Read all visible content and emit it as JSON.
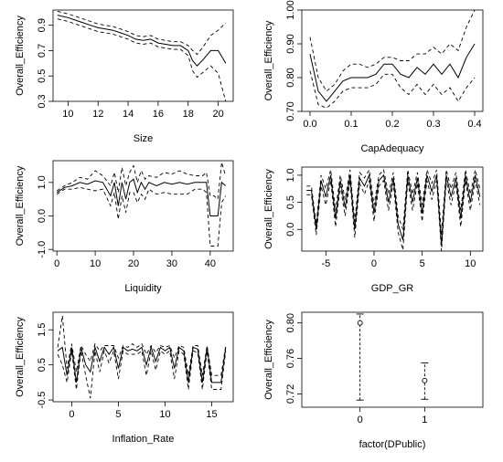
{
  "chart_data": [
    {
      "type": "line",
      "xlabel": "Size",
      "ylabel": "Overall_Efficiency",
      "xlim": [
        9,
        21
      ],
      "ylim": [
        0.3,
        1.02
      ],
      "xticks": [
        10,
        12,
        14,
        16,
        18,
        20
      ],
      "yticks": [
        0.3,
        0.5,
        0.7,
        0.9
      ],
      "x": [
        9.3,
        10,
        10.5,
        11,
        11.5,
        12,
        12.5,
        13,
        13.5,
        14,
        14.5,
        15,
        15.5,
        16,
        16.5,
        17,
        17.5,
        18,
        18.3,
        18.6,
        19,
        19.5,
        20,
        20.5
      ],
      "series": [
        {
          "style": "solid",
          "values": [
            0.98,
            0.96,
            0.94,
            0.92,
            0.9,
            0.88,
            0.87,
            0.86,
            0.84,
            0.82,
            0.79,
            0.78,
            0.79,
            0.76,
            0.75,
            0.74,
            0.74,
            0.7,
            0.62,
            0.58,
            0.63,
            0.7,
            0.7,
            0.6
          ]
        },
        {
          "style": "dashed",
          "values": [
            1.01,
            0.99,
            0.97,
            0.95,
            0.93,
            0.91,
            0.9,
            0.89,
            0.87,
            0.85,
            0.82,
            0.81,
            0.82,
            0.79,
            0.78,
            0.77,
            0.77,
            0.74,
            0.7,
            0.67,
            0.73,
            0.82,
            0.86,
            0.92
          ]
        },
        {
          "style": "dashed",
          "values": [
            0.95,
            0.93,
            0.91,
            0.89,
            0.87,
            0.85,
            0.84,
            0.83,
            0.81,
            0.79,
            0.76,
            0.75,
            0.76,
            0.73,
            0.72,
            0.71,
            0.71,
            0.66,
            0.54,
            0.49,
            0.53,
            0.58,
            0.52,
            0.3
          ]
        }
      ]
    },
    {
      "type": "line",
      "xlabel": "CapAdequacy",
      "ylabel": "Overall_Efficiency",
      "xlim": [
        -0.02,
        0.42
      ],
      "ylim": [
        0.7,
        1.0
      ],
      "xticks": [
        0.0,
        0.1,
        0.2,
        0.3,
        0.4
      ],
      "xtick_labels": [
        "0.0",
        "0.1",
        "0.2",
        "0.3",
        "0.4"
      ],
      "yticks": [
        0.7,
        0.8,
        0.9,
        1.0
      ],
      "ytick_labels": [
        "0.70",
        "0.80",
        "0.90",
        "1.00"
      ],
      "x": [
        0.0,
        0.02,
        0.04,
        0.06,
        0.08,
        0.1,
        0.12,
        0.14,
        0.16,
        0.18,
        0.2,
        0.22,
        0.24,
        0.26,
        0.28,
        0.3,
        0.32,
        0.34,
        0.36,
        0.38,
        0.4
      ],
      "series": [
        {
          "style": "solid",
          "values": [
            0.87,
            0.76,
            0.73,
            0.76,
            0.79,
            0.8,
            0.8,
            0.8,
            0.81,
            0.84,
            0.84,
            0.81,
            0.8,
            0.83,
            0.81,
            0.84,
            0.81,
            0.84,
            0.8,
            0.86,
            0.9
          ]
        },
        {
          "style": "dashed",
          "values": [
            0.92,
            0.8,
            0.76,
            0.78,
            0.82,
            0.84,
            0.84,
            0.83,
            0.84,
            0.86,
            0.86,
            0.85,
            0.85,
            0.87,
            0.87,
            0.89,
            0.87,
            0.9,
            0.88,
            0.95,
            1.0
          ]
        },
        {
          "style": "dashed",
          "values": [
            0.82,
            0.72,
            0.71,
            0.73,
            0.76,
            0.77,
            0.77,
            0.77,
            0.78,
            0.81,
            0.81,
            0.77,
            0.75,
            0.78,
            0.75,
            0.78,
            0.75,
            0.77,
            0.73,
            0.77,
            0.8
          ]
        }
      ]
    },
    {
      "type": "line",
      "xlabel": "Liquidity",
      "ylabel": "Overall_Efficiency",
      "xlim": [
        -1,
        46
      ],
      "ylim": [
        -1.05,
        1.65
      ],
      "xticks": [
        0,
        10,
        20,
        30,
        40
      ],
      "yticks": [
        -1.0,
        0.0,
        1.0
      ],
      "ytick_labels": [
        "-1.0",
        "0.0",
        "1.0"
      ],
      "x": [
        0,
        2,
        4,
        6,
        8,
        10,
        12,
        14,
        15,
        16,
        17,
        18,
        19,
        20,
        21,
        22,
        23,
        24,
        26,
        28,
        30,
        32,
        34,
        36,
        38,
        39,
        40,
        41,
        42,
        43,
        44
      ],
      "series": [
        {
          "style": "solid",
          "values": [
            0.7,
            0.85,
            0.9,
            1.0,
            0.95,
            1.05,
            1.0,
            0.6,
            1.0,
            0.3,
            1.0,
            0.5,
            1.0,
            1.1,
            0.7,
            1.0,
            0.8,
            1.0,
            0.9,
            1.0,
            0.95,
            1.0,
            0.95,
            1.0,
            1.0,
            1.0,
            0.0,
            0.0,
            0.0,
            1.0,
            0.9
          ]
        },
        {
          "style": "dashed",
          "values": [
            0.75,
            0.9,
            1.0,
            1.15,
            1.1,
            1.35,
            1.2,
            0.9,
            1.3,
            0.7,
            1.45,
            0.9,
            1.3,
            1.5,
            1.0,
            1.35,
            1.1,
            1.2,
            1.15,
            1.3,
            1.25,
            1.35,
            1.25,
            1.2,
            1.2,
            1.3,
            0.6,
            0.6,
            0.5,
            1.6,
            1.2
          ]
        },
        {
          "style": "dashed",
          "values": [
            0.65,
            0.8,
            0.8,
            0.85,
            0.8,
            0.75,
            0.8,
            0.3,
            0.7,
            -0.1,
            0.6,
            0.1,
            0.7,
            0.7,
            0.4,
            0.65,
            0.5,
            0.8,
            0.65,
            0.7,
            0.65,
            0.65,
            0.65,
            0.8,
            0.8,
            0.7,
            -0.9,
            -0.9,
            -0.9,
            0.4,
            0.6
          ]
        }
      ]
    },
    {
      "type": "line",
      "xlabel": "GDP_GR",
      "ylabel": "Overall_Efficiency",
      "xlim": [
        -7.5,
        11.3
      ],
      "ylim": [
        -0.4,
        1.15
      ],
      "xticks": [
        -5,
        0,
        5,
        10
      ],
      "yticks": [
        0.0,
        0.5,
        1.0
      ],
      "ytick_labels": [
        "0.0",
        "0.5",
        "1.0"
      ],
      "x": [
        -7,
        -6.5,
        -6,
        -5.5,
        -5,
        -4.5,
        -4,
        -3.5,
        -3,
        -2.5,
        -2,
        -1.5,
        -1,
        -0.5,
        0,
        0.5,
        1,
        1.5,
        2,
        2.5,
        3,
        3.5,
        4,
        4.5,
        5,
        5.5,
        6,
        6.5,
        7,
        7.5,
        8,
        8.5,
        9,
        9.5,
        10,
        10.5,
        11
      ],
      "series": [
        {
          "style": "solid",
          "values": [
            0.72,
            0.72,
            0.0,
            0.9,
            0.6,
            1.0,
            0.2,
            0.9,
            0.4,
            1.0,
            0.0,
            0.95,
            0.8,
            1.0,
            0.3,
            0.9,
            1.0,
            0.5,
            0.95,
            0.1,
            -0.2,
            1.0,
            0.5,
            0.95,
            0.3,
            1.0,
            0.7,
            1.0,
            -0.3,
            1.0,
            0.6,
            0.95,
            0.2,
            1.0,
            0.5,
            1.0,
            0.6
          ]
        },
        {
          "style": "dashed",
          "values": [
            0.8,
            0.8,
            0.1,
            1.0,
            0.75,
            1.1,
            0.35,
            1.0,
            0.55,
            1.1,
            0.15,
            1.05,
            0.95,
            1.1,
            0.45,
            1.0,
            1.1,
            0.65,
            1.05,
            0.25,
            0.0,
            1.1,
            0.65,
            1.05,
            0.45,
            1.1,
            0.85,
            1.1,
            -0.1,
            1.1,
            0.75,
            1.05,
            0.35,
            1.1,
            0.65,
            1.1,
            0.75
          ]
        },
        {
          "style": "dashed",
          "values": [
            0.64,
            0.64,
            -0.1,
            0.8,
            0.45,
            0.9,
            0.05,
            0.8,
            0.25,
            0.9,
            -0.15,
            0.85,
            0.65,
            0.9,
            0.15,
            0.8,
            0.9,
            0.35,
            0.85,
            -0.05,
            -0.38,
            0.9,
            0.35,
            0.85,
            0.15,
            0.9,
            0.55,
            0.9,
            -0.4,
            0.9,
            0.45,
            0.85,
            0.05,
            0.9,
            0.35,
            0.9,
            0.45
          ]
        }
      ]
    },
    {
      "type": "line",
      "xlabel": "Inflation_Rate",
      "ylabel": "Overall_Efficiency",
      "xlim": [
        -2,
        17.3
      ],
      "ylim": [
        -0.55,
        2.0
      ],
      "xticks": [
        0,
        5,
        10,
        15
      ],
      "yticks": [
        -0.5,
        0.5,
        1.5
      ],
      "ytick_labels": [
        "-0.5",
        "0.5",
        "1.5"
      ],
      "x": [
        -1.5,
        -1,
        -0.5,
        0,
        0.5,
        1,
        1.5,
        2,
        2.5,
        3,
        3.5,
        4,
        4.5,
        5,
        5.5,
        6,
        6.5,
        7,
        7.5,
        8,
        8.5,
        9,
        9.5,
        10,
        10.5,
        11,
        11.5,
        12,
        12.5,
        13,
        13.5,
        14,
        14.5,
        15,
        15.5,
        16,
        16.5
      ],
      "series": [
        {
          "style": "solid",
          "values": [
            0.9,
            1.0,
            0.2,
            1.0,
            0.0,
            1.0,
            0.5,
            0.3,
            1.0,
            0.6,
            1.0,
            0.8,
            1.0,
            0.4,
            1.0,
            0.9,
            0.95,
            0.9,
            1.0,
            0.5,
            1.0,
            0.6,
            1.0,
            0.9,
            1.0,
            0.4,
            1.0,
            0.9,
            0.0,
            1.0,
            0.95,
            0.0,
            1.0,
            0.0,
            0.0,
            0.0,
            1.0
          ]
        },
        {
          "style": "dashed",
          "values": [
            1.0,
            1.9,
            0.4,
            1.1,
            0.3,
            1.05,
            0.8,
            0.6,
            1.1,
            0.9,
            1.05,
            1.05,
            1.05,
            0.7,
            1.05,
            1.0,
            1.1,
            1.0,
            1.1,
            0.8,
            1.05,
            0.85,
            1.05,
            1.0,
            1.05,
            0.7,
            1.05,
            1.0,
            0.2,
            1.05,
            1.05,
            0.2,
            1.05,
            0.2,
            0.2,
            0.2,
            1.05
          ]
        },
        {
          "style": "dashed",
          "values": [
            0.8,
            0.5,
            0.0,
            0.9,
            -0.2,
            0.9,
            0.2,
            -0.45,
            0.9,
            0.3,
            0.9,
            0.55,
            0.9,
            0.1,
            0.9,
            0.8,
            0.8,
            0.8,
            0.9,
            0.2,
            0.9,
            0.35,
            0.9,
            0.8,
            0.9,
            0.1,
            0.9,
            0.8,
            -0.2,
            0.9,
            0.85,
            -0.2,
            0.9,
            -0.2,
            -0.2,
            -0.2,
            0.9
          ]
        }
      ]
    },
    {
      "type": "errorbar",
      "xlabel": "factor(DPublic)",
      "ylabel": "Overall_Efficiency",
      "xlim": [
        -0.9,
        1.9
      ],
      "ylim": [
        0.705,
        0.812
      ],
      "categories": [
        "0",
        "1"
      ],
      "xticks": [
        0,
        1
      ],
      "yticks": [
        0.72,
        0.76,
        0.8
      ],
      "ytick_labels": [
        "0.72",
        "0.76",
        "0.80"
      ],
      "points": [
        {
          "x": 0,
          "y": 0.8,
          "lower": 0.713,
          "upper": 0.81
        },
        {
          "x": 1,
          "y": 0.735,
          "lower": 0.714,
          "upper": 0.755
        }
      ]
    }
  ]
}
